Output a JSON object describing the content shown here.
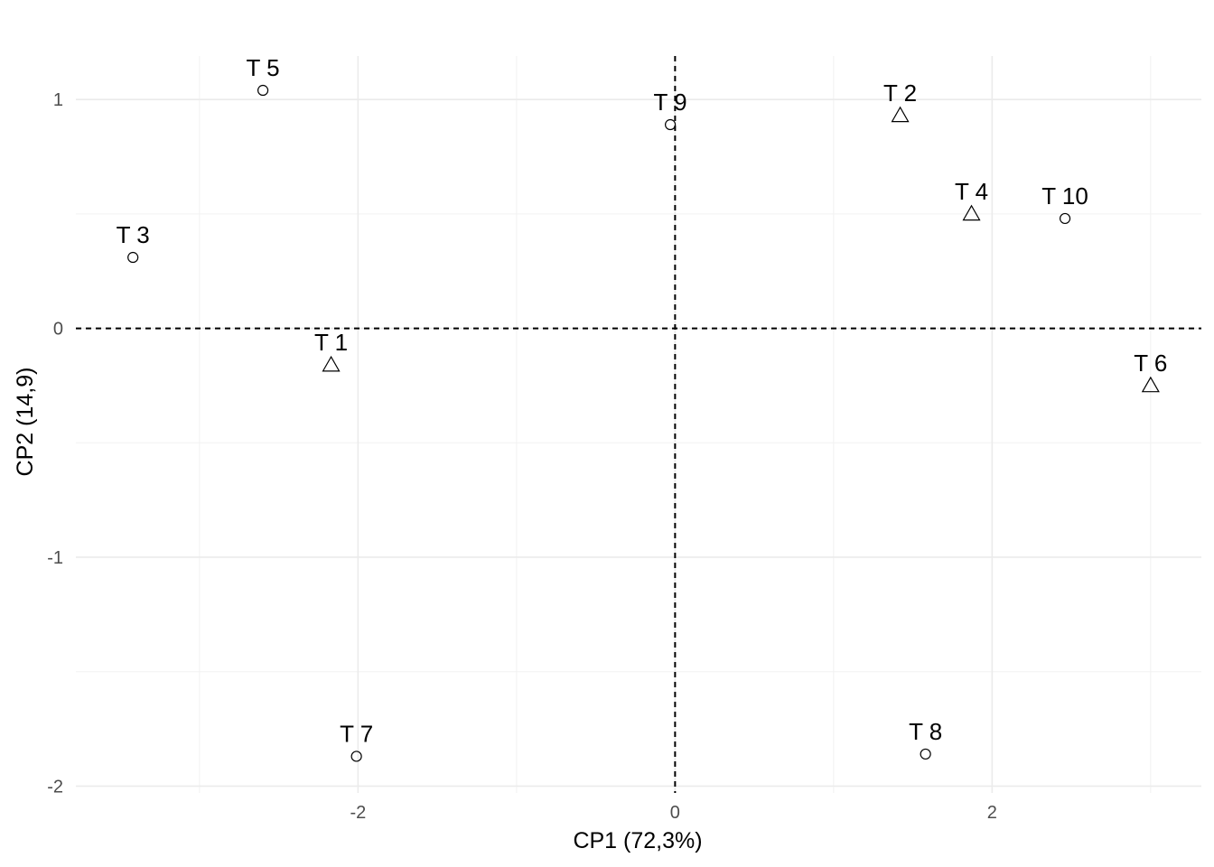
{
  "chart_data": {
    "type": "scatter",
    "xlabel": "CP1 (72,3%)",
    "ylabel": "CP2 (14,9)",
    "xlim": [
      -3.78,
      3.32
    ],
    "ylim": [
      -2.03,
      1.19
    ],
    "x_ticks": [
      -2,
      0,
      2
    ],
    "y_ticks": [
      -2,
      -1,
      0,
      1
    ],
    "x_ticks_minor": [
      -3,
      -1,
      1,
      3
    ],
    "y_ticks_minor": [
      -1.5,
      -0.5,
      0.5
    ],
    "grid": true,
    "reference_lines": {
      "x": 0,
      "y": 0,
      "style": "dashed"
    },
    "points": [
      {
        "label": "T 1",
        "x": -2.17,
        "y": -0.16,
        "shape": "triangle"
      },
      {
        "label": "T 2",
        "x": 1.42,
        "y": 0.93,
        "shape": "triangle"
      },
      {
        "label": "T 3",
        "x": -3.42,
        "y": 0.31,
        "shape": "circle"
      },
      {
        "label": "T 4",
        "x": 1.87,
        "y": 0.5,
        "shape": "triangle"
      },
      {
        "label": "T 5",
        "x": -2.6,
        "y": 1.04,
        "shape": "circle"
      },
      {
        "label": "T 6",
        "x": 3.0,
        "y": -0.25,
        "shape": "triangle"
      },
      {
        "label": "T 7",
        "x": -2.01,
        "y": -1.87,
        "shape": "circle"
      },
      {
        "label": "T 8",
        "x": 1.58,
        "y": -1.86,
        "shape": "circle"
      },
      {
        "label": "T 9",
        "x": -0.03,
        "y": 0.89,
        "shape": "circle"
      },
      {
        "label": "T 10",
        "x": 2.46,
        "y": 0.48,
        "shape": "circle"
      }
    ]
  }
}
